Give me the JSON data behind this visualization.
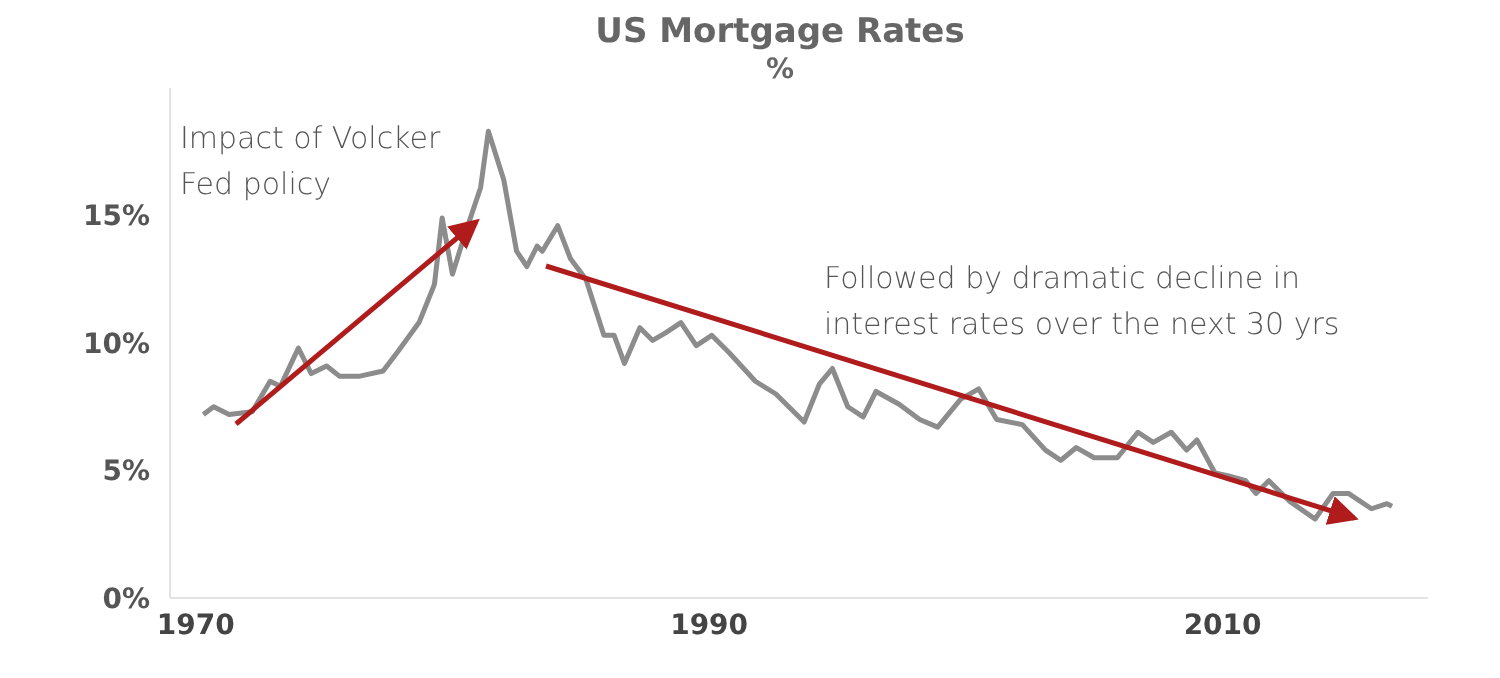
{
  "chart_data": {
    "type": "line",
    "title": "US Mortgage Rates",
    "subtitle": "%",
    "x": [
      1970.3,
      1970.7,
      1971.3,
      1972.2,
      1972.9,
      1973.3,
      1974.0,
      1974.5,
      1975.1,
      1975.6,
      1976.4,
      1977.3,
      1977.9,
      1978.7,
      1979.3,
      1979.6,
      1980.0,
      1980.5,
      1981.1,
      1981.4,
      1982.0,
      1982.5,
      1982.9,
      1983.3,
      1983.5,
      1984.1,
      1984.6,
      1985.2,
      1985.9,
      1986.3,
      1986.7,
      1987.3,
      1987.8,
      1988.3,
      1988.9,
      1989.5,
      1990.1,
      1990.8,
      1991.8,
      1992.6,
      1993.7,
      1994.3,
      1994.8,
      1995.4,
      1996.0,
      1996.5,
      1997.4,
      1998.2,
      1998.9,
      1999.8,
      2000.5,
      2001.2,
      2002.2,
      2003.1,
      2003.7,
      2004.3,
      2005.0,
      2005.9,
      2006.7,
      2007.3,
      2008.0,
      2008.6,
      2009.0,
      2009.7,
      2010.2,
      2010.9,
      2011.3,
      2011.8,
      2012.6,
      2013.6,
      2014.3,
      2014.9,
      2015.8,
      2016.4,
      2016.6
    ],
    "values": [
      7.2,
      7.5,
      7.2,
      7.3,
      8.5,
      8.3,
      9.8,
      8.8,
      9.1,
      8.7,
      8.7,
      8.9,
      9.7,
      10.8,
      12.3,
      14.9,
      12.7,
      14.3,
      16.1,
      18.3,
      16.4,
      13.6,
      13.0,
      13.8,
      13.6,
      14.6,
      13.3,
      12.5,
      10.3,
      10.3,
      9.2,
      10.6,
      10.1,
      10.4,
      10.8,
      9.9,
      10.3,
      9.6,
      8.5,
      8.0,
      6.9,
      8.4,
      9.0,
      7.5,
      7.1,
      8.1,
      7.6,
      7.0,
      6.7,
      7.8,
      8.2,
      7.0,
      6.8,
      5.8,
      5.4,
      5.9,
      5.5,
      5.5,
      6.5,
      6.1,
      6.5,
      5.8,
      6.2,
      4.9,
      4.8,
      4.6,
      4.1,
      4.6,
      3.8,
      3.1,
      4.1,
      4.1,
      3.5,
      3.7,
      3.6
    ],
    "color": "#8c8c8c",
    "marker": "none",
    "xlim": [
      1969,
      2018
    ],
    "xticks": [
      1970,
      1990,
      2010
    ],
    "ylim": [
      0,
      20
    ],
    "yticks": [
      {
        "value": 0,
        "label": "0%"
      },
      {
        "value": 5,
        "label": "5%"
      },
      {
        "value": 10,
        "label": "10%"
      },
      {
        "value": 15,
        "label": "15%"
      }
    ],
    "annotations": [
      "Impact of Volcker Fed policy",
      "Followed by dramatic decline in interest rates over the next 30 yrs"
    ]
  }
}
